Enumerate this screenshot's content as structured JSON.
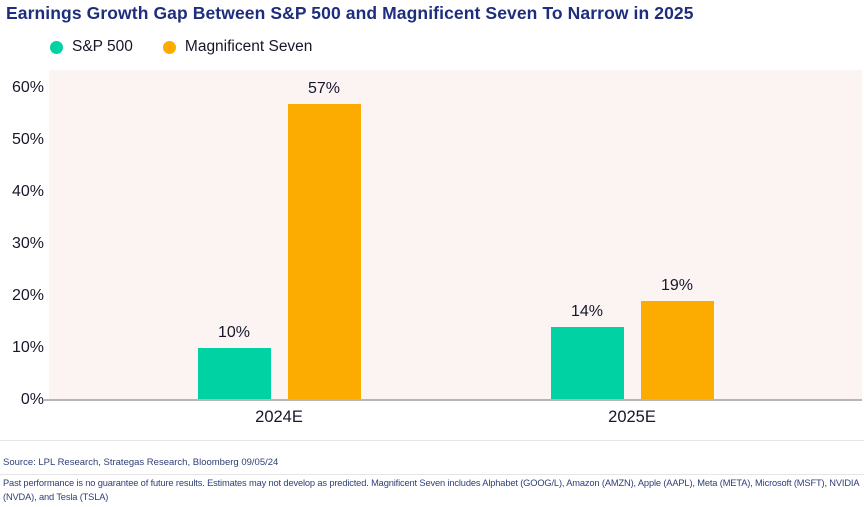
{
  "title": "Earnings Growth Gap Between S&P 500 and Magnificent Seven To Narrow in 2025",
  "legend": [
    {
      "label": "S&P 500",
      "color": "#00d2a3"
    },
    {
      "label": "Magnificent Seven",
      "color": "#fcab00"
    }
  ],
  "chart_data": {
    "type": "bar",
    "title": "Earnings Growth Gap Between S&P 500 and Magnificent Seven To Narrow in 2025",
    "categories": [
      "2024E",
      "2025E"
    ],
    "series": [
      {
        "name": "S&P 500",
        "color": "#00d2a3",
        "values": [
          10,
          14
        ],
        "labels": [
          "10%",
          "14%"
        ]
      },
      {
        "name": "Magnificent Seven",
        "color": "#fcab00",
        "values": [
          57,
          19
        ],
        "labels": [
          "57%",
          "19%"
        ]
      }
    ],
    "yticks": [
      "60%",
      "50%",
      "40%",
      "30%",
      "20%",
      "10%",
      "0%"
    ],
    "ylim": [
      0,
      63
    ],
    "unit": "percent",
    "grid": false,
    "legend_position": "top-left",
    "plot_background": "#fcf4f3",
    "axis_color": "#b6b6b6"
  },
  "footer": {
    "source": "Source: LPL Research, Strategas Research, Bloomberg 09/05/24",
    "disclaimer_line1": "Past performance is no guarantee of future results. Estimates may not develop as predicted. Magnificent Seven includes Alphabet (GOOG/L), Amazon (AMZN), Apple (AAPL), Meta (META), Microsoft (MSFT), NVIDIA",
    "disclaimer_line2": "(NVDA), and Tesla (TSLA)"
  },
  "colors": {
    "title_navy": "#1e2e7c",
    "text_dark": "#17172b",
    "footnote_navy": "#2e4178",
    "sp500_teal": "#00d2a3",
    "mag7_orange": "#fcab00"
  }
}
